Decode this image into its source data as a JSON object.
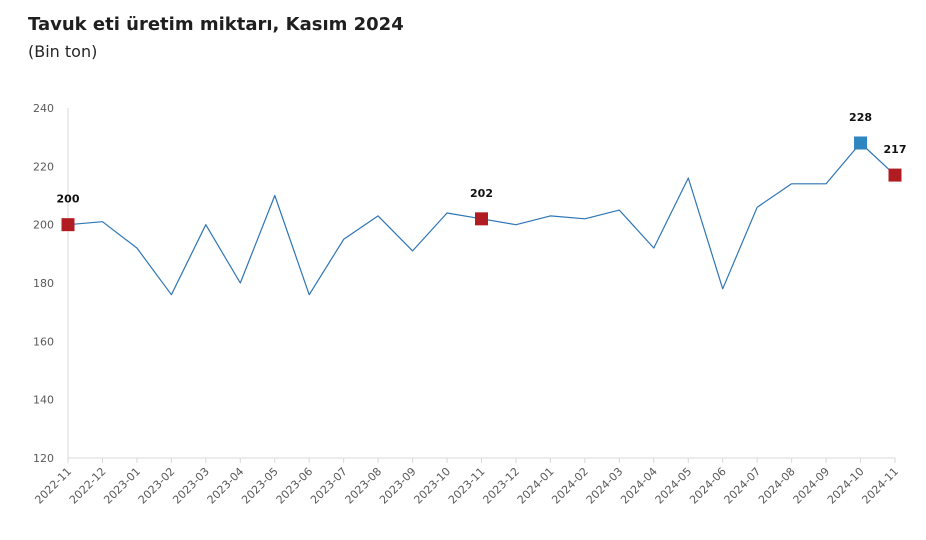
{
  "title": "Tavuk eti üretim miktarı, Kasım 2024",
  "subtitle": "(Bin ton)",
  "chart_data": {
    "type": "line",
    "title": "Tavuk eti üretim miktarı, Kasım 2024",
    "subtitle": "(Bin ton)",
    "xlabel": "",
    "ylabel": "",
    "ylim": [
      120,
      240
    ],
    "yticks": [
      120,
      140,
      160,
      180,
      200,
      220,
      240
    ],
    "grid": false,
    "categories": [
      "2022-11",
      "2022-12",
      "2023-01",
      "2023-02",
      "2023-03",
      "2023-04",
      "2023-05",
      "2023-06",
      "2023-07",
      "2023-08",
      "2023-09",
      "2023-10",
      "2023-11",
      "2023-12",
      "2024-01",
      "2024-02",
      "2024-03",
      "2024-04",
      "2024-05",
      "2024-06",
      "2024-07",
      "2024-08",
      "2024-09",
      "2024-10",
      "2024-11"
    ],
    "series": [
      {
        "values": [
          200,
          201,
          192,
          176,
          200,
          180,
          210,
          176,
          195,
          203,
          191,
          204,
          202,
          200,
          203,
          202,
          205,
          192,
          216,
          178,
          206,
          214,
          214,
          228,
          217
        ],
        "color": "#2e75b6"
      }
    ],
    "highlights": [
      {
        "category": "2022-11",
        "value": 200,
        "label": "200",
        "color": "#b01c22"
      },
      {
        "category": "2023-11",
        "value": 202,
        "label": "202",
        "color": "#b01c22"
      },
      {
        "category": "2024-10",
        "value": 228,
        "label": "228",
        "color": "#2e86c1"
      },
      {
        "category": "2024-11",
        "value": 217,
        "label": "217",
        "color": "#b01c22"
      }
    ]
  }
}
